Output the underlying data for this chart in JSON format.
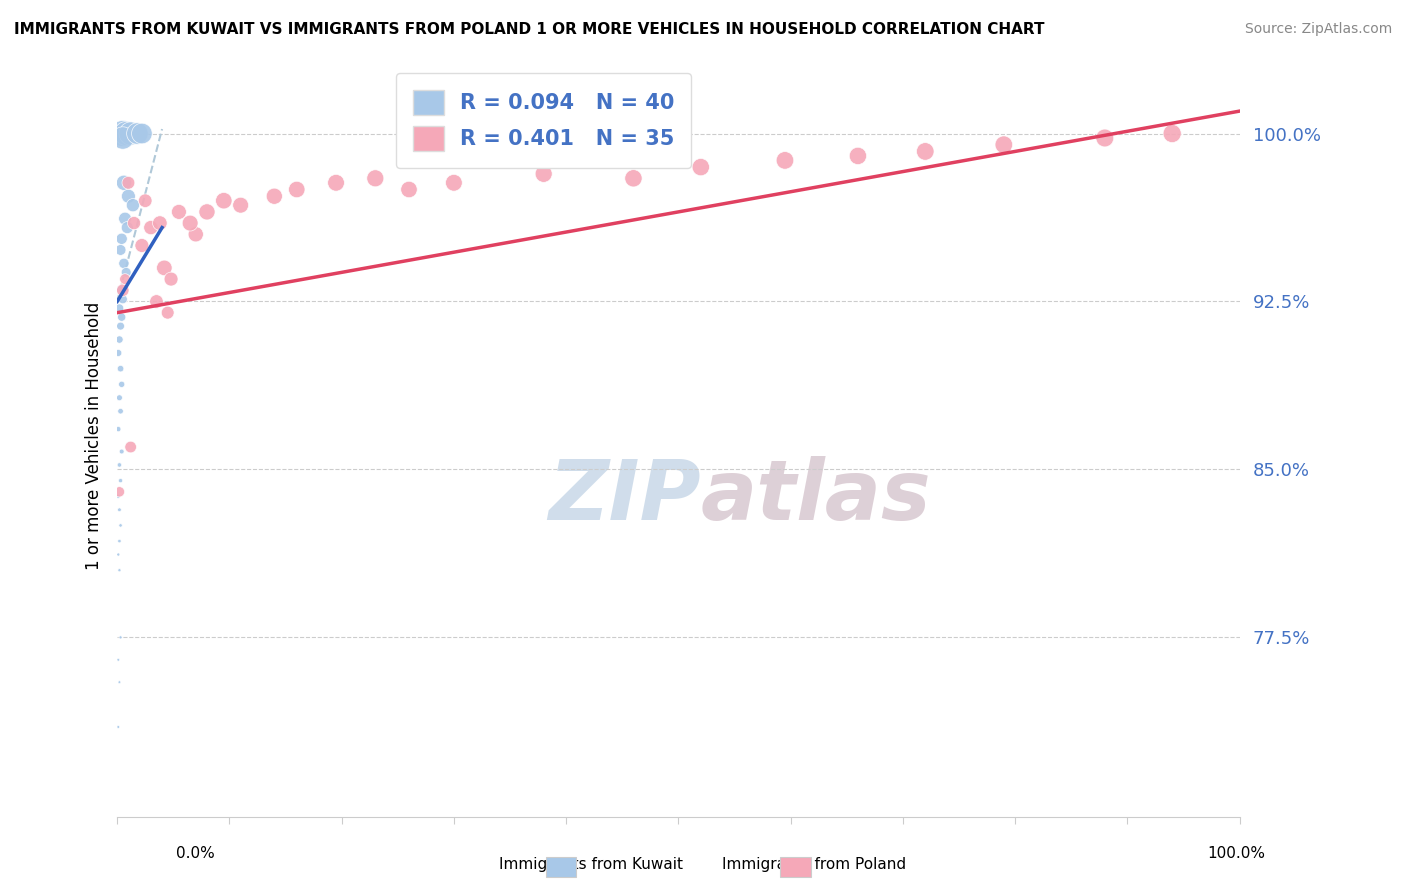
{
  "title": "IMMIGRANTS FROM KUWAIT VS IMMIGRANTS FROM POLAND 1 OR MORE VEHICLES IN HOUSEHOLD CORRELATION CHART",
  "source": "Source: ZipAtlas.com",
  "ylabel": "1 or more Vehicles in Household",
  "ytick_labels": [
    "100.0%",
    "92.5%",
    "85.0%",
    "77.5%"
  ],
  "ytick_values": [
    1.0,
    0.925,
    0.85,
    0.775
  ],
  "xlim": [
    0.0,
    1.0
  ],
  "ylim": [
    0.695,
    1.035
  ],
  "legend_r_kuwait": "R = 0.094",
  "legend_n_kuwait": "N = 40",
  "legend_r_poland": "R = 0.401",
  "legend_n_poland": "N = 35",
  "kuwait_color": "#a8c8e8",
  "poland_color": "#f5a8b8",
  "kuwait_line_color": "#3060c0",
  "poland_line_color": "#e04060",
  "dashed_line_color": "#b0c8d8",
  "watermark_color": "#cdd8e5",
  "kuwait_scatter_x": [
    0.005,
    0.008,
    0.012,
    0.005,
    0.018,
    0.022,
    0.006,
    0.01,
    0.014,
    0.007,
    0.009,
    0.004,
    0.003,
    0.006,
    0.008,
    0.003,
    0.005,
    0.002,
    0.004,
    0.003,
    0.002,
    0.001,
    0.003,
    0.004,
    0.002,
    0.003,
    0.001,
    0.004,
    0.002,
    0.003,
    0.001,
    0.002,
    0.003,
    0.002,
    0.001,
    0.002,
    0.003,
    0.001,
    0.002,
    0.001
  ],
  "kuwait_scatter_y": [
    1.0,
    1.0,
    1.0,
    0.998,
    1.0,
    1.0,
    0.978,
    0.972,
    0.968,
    0.962,
    0.958,
    0.953,
    0.948,
    0.942,
    0.938,
    0.93,
    0.926,
    0.922,
    0.918,
    0.914,
    0.908,
    0.902,
    0.895,
    0.888,
    0.882,
    0.876,
    0.868,
    0.858,
    0.852,
    0.845,
    0.838,
    0.832,
    0.825,
    0.818,
    0.812,
    0.805,
    0.775,
    0.765,
    0.755,
    0.735
  ],
  "kuwait_scatter_size": [
    350,
    300,
    280,
    260,
    240,
    220,
    120,
    100,
    90,
    85,
    75,
    65,
    60,
    55,
    50,
    45,
    42,
    38,
    35,
    32,
    28,
    25,
    22,
    20,
    18,
    16,
    14,
    12,
    10,
    9,
    8,
    7,
    6,
    6,
    5,
    5,
    5,
    4,
    4,
    4
  ],
  "poland_scatter_x": [
    0.005,
    0.01,
    0.015,
    0.025,
    0.022,
    0.03,
    0.038,
    0.055,
    0.07,
    0.042,
    0.048,
    0.035,
    0.065,
    0.08,
    0.095,
    0.11,
    0.14,
    0.16,
    0.195,
    0.23,
    0.26,
    0.3,
    0.38,
    0.46,
    0.52,
    0.595,
    0.66,
    0.72,
    0.79,
    0.88,
    0.94,
    0.002,
    0.007,
    0.012,
    0.045
  ],
  "poland_scatter_y": [
    0.93,
    0.978,
    0.96,
    0.97,
    0.95,
    0.958,
    0.96,
    0.965,
    0.955,
    0.94,
    0.935,
    0.925,
    0.96,
    0.965,
    0.97,
    0.968,
    0.972,
    0.975,
    0.978,
    0.98,
    0.975,
    0.978,
    0.982,
    0.98,
    0.985,
    0.988,
    0.99,
    0.992,
    0.995,
    0.998,
    1.0,
    0.84,
    0.935,
    0.86,
    0.92
  ],
  "poland_scatter_size": [
    80,
    85,
    90,
    95,
    100,
    105,
    110,
    115,
    120,
    125,
    100,
    95,
    130,
    135,
    140,
    130,
    135,
    140,
    145,
    150,
    140,
    145,
    150,
    155,
    155,
    160,
    155,
    160,
    160,
    165,
    170,
    55,
    60,
    70,
    85
  ],
  "kuwait_trend_x": [
    0.0,
    0.04
  ],
  "kuwait_trend_y_start": 0.925,
  "kuwait_trend_y_end": 0.958,
  "poland_trend_x": [
    0.0,
    1.0
  ],
  "poland_trend_y_start": 0.92,
  "poland_trend_y_end": 1.01,
  "dashed_trend_x": [
    0.0,
    0.04
  ],
  "dashed_trend_y_start": 0.925,
  "dashed_trend_y_end": 1.002,
  "xtick_positions": [
    0.0,
    0.1,
    0.2,
    0.3,
    0.4,
    0.5,
    0.6,
    0.7,
    0.8,
    0.9,
    1.0
  ]
}
